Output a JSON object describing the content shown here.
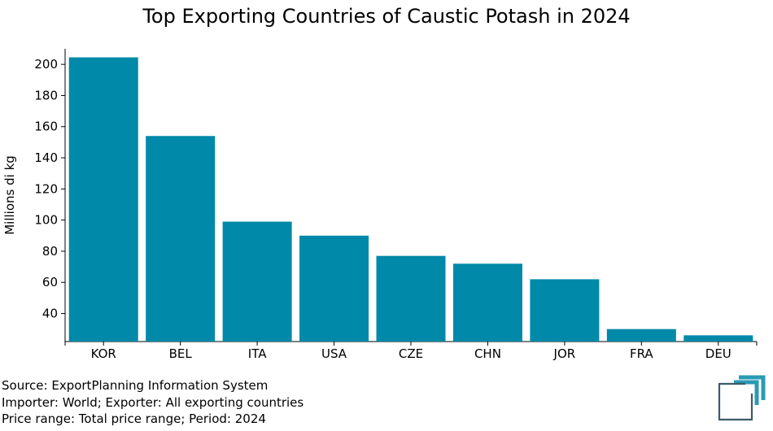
{
  "chart_data": {
    "type": "bar",
    "title": "Top Exporting Countries of Caustic Potash in 2024",
    "ylabel": "Millions di kg",
    "xlabel": "",
    "categories": [
      "KOR",
      "BEL",
      "ITA",
      "USA",
      "CZE",
      "CHN",
      "JOR",
      "FRA",
      "DEU"
    ],
    "values": [
      204.5,
      154,
      99,
      90,
      77,
      72,
      62,
      30,
      26
    ],
    "ylim": [
      22,
      210
    ],
    "yticks": [
      40,
      60,
      80,
      100,
      120,
      140,
      160,
      180,
      200
    ],
    "bar_color": "#0089A8",
    "grid": false
  },
  "source": {
    "line1": "Source: ExportPlanning Information System",
    "line2": "Importer: World; Exporter: All exporting countries",
    "line3": "Price range: Total price range; Period: 2024"
  },
  "logo": {
    "icon": "exportplanning-logo-icon",
    "color": "#2a9bb5",
    "dark": "#3d5a6c"
  }
}
